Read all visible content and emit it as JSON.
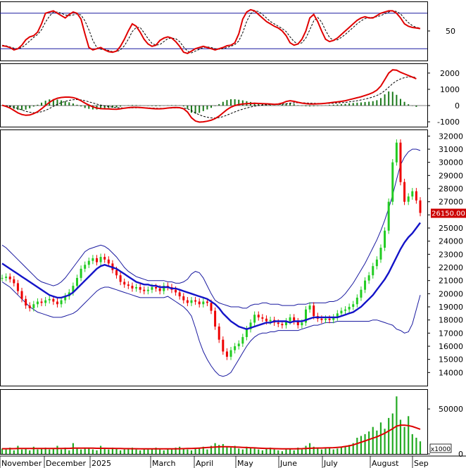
{
  "chart_data": {
    "type": "candlestick",
    "x_months": [
      "November",
      "December",
      "2025",
      "March",
      "April",
      "May",
      "June",
      "July",
      "August",
      "Sep"
    ],
    "price": {
      "ylim": [
        13000,
        32500
      ],
      "ticks": [
        "32000",
        "31000",
        "30000",
        "29000",
        "28000",
        "27000",
        "26000",
        "25000",
        "24000",
        "23000",
        "22000",
        "21000",
        "20000",
        "19000",
        "18000",
        "17000",
        "16000",
        "15000",
        "14000"
      ],
      "last_price_label": "26150.00",
      "last_price": 26150,
      "series_ma": "blue moving average",
      "series_bands": "bollinger bands",
      "closes": [
        21200,
        21300,
        21100,
        20800,
        20200,
        19600,
        19100,
        18900,
        19200,
        19400,
        19300,
        19500,
        19600,
        19400,
        19200,
        19500,
        19800,
        20100,
        20600,
        21200,
        21900,
        22200,
        22500,
        22700,
        22400,
        22800,
        22600,
        22300,
        21800,
        21400,
        20900,
        20700,
        20600,
        20400,
        20500,
        20300,
        20200,
        20300,
        20500,
        20400,
        20200,
        20600,
        20500,
        20300,
        20100,
        19800,
        19500,
        19300,
        19500,
        19400,
        19200,
        19400,
        19300,
        18700,
        17500,
        16500,
        15600,
        15200,
        15700,
        16000,
        16200,
        16700,
        17300,
        17800,
        18400,
        18200,
        18100,
        17900,
        18000,
        17800,
        17700,
        17600,
        17900,
        18200,
        17900,
        17600,
        17800,
        18800,
        19100,
        18300,
        18100,
        18000,
        18100,
        18000,
        18200,
        18500,
        18700,
        18800,
        19000,
        19200,
        19700,
        20300,
        21000,
        21400,
        22100,
        22600,
        23500,
        24800,
        27000,
        30000,
        31500,
        28500,
        27000,
        27400,
        27800,
        27100,
        26150
      ],
      "ma": [
        22300,
        22100,
        21900,
        21700,
        21500,
        21300,
        21100,
        20900,
        20700,
        20500,
        20300,
        20100,
        19900,
        19800,
        19700,
        19700,
        19800,
        19900,
        20100,
        20400,
        20700,
        21000,
        21300,
        21600,
        21900,
        22100,
        22200,
        22100,
        22000,
        21900,
        21700,
        21500,
        21300,
        21100,
        20900,
        20800,
        20700,
        20700,
        20600,
        20600,
        20500,
        20500,
        20500,
        20400,
        20400,
        20300,
        20200,
        20100,
        20000,
        19900,
        19800,
        19700,
        19600,
        19400,
        19200,
        18900,
        18500,
        18200,
        17900,
        17700,
        17500,
        17400,
        17300,
        17400,
        17500,
        17600,
        17700,
        17800,
        17800,
        17900,
        17900,
        17900,
        17900,
        17800,
        17900,
        17900,
        17900,
        18000,
        18100,
        18200,
        18200,
        18200,
        18200,
        18200,
        18200,
        18200,
        18300,
        18400,
        18500,
        18600,
        18800,
        19000,
        19300,
        19600,
        19900,
        20300,
        20700,
        21100,
        21600,
        22200,
        22800,
        23400,
        23900,
        24300,
        24600,
        25000,
        25400
      ],
      "bb_upper": [
        23700,
        23500,
        23200,
        22900,
        22600,
        22300,
        22000,
        21700,
        21400,
        21100,
        20900,
        20800,
        20700,
        20600,
        20700,
        20900,
        21200,
        21600,
        22000,
        22400,
        22800,
        23200,
        23400,
        23500,
        23600,
        23700,
        23600,
        23400,
        23100,
        22800,
        22400,
        22000,
        21700,
        21500,
        21300,
        21200,
        21100,
        21000,
        21000,
        21000,
        21000,
        21000,
        20900,
        20900,
        20800,
        20800,
        20900,
        21100,
        21500,
        21700,
        21600,
        21200,
        20600,
        20000,
        19500,
        19300,
        19200,
        19100,
        19000,
        19000,
        19000,
        18900,
        18900,
        19100,
        19200,
        19200,
        19300,
        19300,
        19200,
        19200,
        19200,
        19100,
        19100,
        19100,
        19100,
        19200,
        19200,
        19200,
        19300,
        19300,
        19300,
        19300,
        19300,
        19400,
        19400,
        19500,
        19700,
        20000,
        20400,
        20800,
        21300,
        21800,
        22300,
        22900,
        23500,
        24100,
        24800,
        25600,
        26500,
        27500,
        28700,
        29800,
        30400,
        30800,
        31000,
        31000,
        30900
      ],
      "bb_lower": [
        20900,
        20700,
        20500,
        20200,
        19900,
        19600,
        19300,
        19000,
        18800,
        18600,
        18500,
        18400,
        18300,
        18200,
        18200,
        18200,
        18300,
        18400,
        18500,
        18700,
        19000,
        19300,
        19600,
        19900,
        20200,
        20400,
        20500,
        20500,
        20400,
        20300,
        20200,
        20100,
        20000,
        19900,
        19800,
        19700,
        19700,
        19700,
        19700,
        19700,
        19700,
        19700,
        19800,
        19600,
        19400,
        19200,
        19000,
        18700,
        18300,
        17400,
        16400,
        15600,
        15000,
        14500,
        14100,
        13800,
        13700,
        13800,
        14000,
        14500,
        15000,
        15500,
        16000,
        16400,
        16700,
        16900,
        17000,
        17000,
        17100,
        17100,
        17200,
        17200,
        17200,
        17200,
        17200,
        17200,
        17300,
        17400,
        17500,
        17600,
        17600,
        17700,
        17800,
        17800,
        17800,
        17900,
        17900,
        17900,
        17900,
        17900,
        17900,
        17900,
        17900,
        17900,
        18000,
        18000,
        17900,
        17800,
        17700,
        17600,
        17300,
        17200,
        17000,
        17100,
        17700,
        18800,
        19900
      ]
    },
    "stochastic": {
      "ticks": [
        "50"
      ],
      "ref_lines": [
        80,
        20
      ],
      "k": [
        25,
        24,
        22,
        18,
        20,
        26,
        35,
        40,
        42,
        48,
        62,
        80,
        82,
        84,
        80,
        76,
        72,
        78,
        82,
        80,
        70,
        45,
        22,
        18,
        20,
        22,
        18,
        15,
        14,
        16,
        24,
        36,
        50,
        62,
        58,
        48,
        36,
        28,
        24,
        26,
        34,
        38,
        40,
        38,
        32,
        24,
        14,
        12,
        16,
        20,
        22,
        24,
        22,
        20,
        18,
        20,
        22,
        25,
        26,
        30,
        45,
        70,
        82,
        86,
        84,
        78,
        72,
        66,
        62,
        58,
        55,
        50,
        42,
        30,
        26,
        28,
        36,
        50,
        72,
        78,
        66,
        50,
        36,
        32,
        34,
        38,
        44,
        50,
        56,
        62,
        68,
        72,
        74,
        72,
        72,
        76,
        80,
        82,
        84,
        84,
        80,
        72,
        62,
        58,
        56,
        55,
        54
      ],
      "d": [
        26,
        25,
        23,
        21,
        20,
        22,
        27,
        33,
        39,
        44,
        52,
        65,
        75,
        82,
        82,
        80,
        77,
        76,
        77,
        79,
        77,
        67,
        52,
        34,
        22,
        19,
        19,
        17,
        15,
        15,
        18,
        25,
        36,
        49,
        56,
        56,
        47,
        37,
        29,
        26,
        27,
        32,
        37,
        38,
        37,
        32,
        23,
        16,
        13,
        16,
        19,
        22,
        23,
        22,
        20,
        19,
        20,
        22,
        24,
        27,
        33,
        47,
        66,
        79,
        84,
        83,
        78,
        72,
        66,
        62,
        58,
        54,
        49,
        40,
        32,
        28,
        30,
        38,
        52,
        67,
        73,
        65,
        51,
        39,
        34,
        35,
        39,
        44,
        50,
        56,
        62,
        67,
        71,
        73,
        73,
        74,
        76,
        79,
        82,
        84,
        83,
        79,
        71,
        64,
        59,
        56,
        55
      ]
    },
    "macd": {
      "ylim": [
        -1300,
        2600
      ],
      "ticks": [
        "2000",
        "1000",
        "0",
        "-1000"
      ],
      "macd": [
        20,
        -50,
        -150,
        -300,
        -450,
        -550,
        -600,
        -580,
        -500,
        -380,
        -200,
        0,
        200,
        350,
        450,
        500,
        520,
        520,
        490,
        420,
        300,
        150,
        30,
        -80,
        -150,
        -190,
        -200,
        -210,
        -220,
        -230,
        -200,
        -160,
        -130,
        -110,
        -110,
        -120,
        -140,
        -160,
        -180,
        -200,
        -200,
        -180,
        -150,
        -130,
        -120,
        -130,
        -200,
        -400,
        -750,
        -950,
        -1020,
        -1000,
        -960,
        -900,
        -800,
        -650,
        -450,
        -250,
        -100,
        0,
        60,
        100,
        120,
        130,
        140,
        130,
        120,
        110,
        100,
        80,
        90,
        150,
        250,
        300,
        260,
        200,
        150,
        120,
        100,
        100,
        110,
        120,
        140,
        170,
        200,
        230,
        260,
        300,
        360,
        420,
        480,
        540,
        620,
        700,
        800,
        950,
        1200,
        1600,
        2000,
        2200,
        2180,
        2050,
        1950,
        1850,
        1750,
        1650
      ],
      "signal": [
        0,
        -10,
        -40,
        -100,
        -180,
        -270,
        -350,
        -410,
        -440,
        -430,
        -380,
        -300,
        -180,
        -50,
        80,
        180,
        260,
        320,
        360,
        370,
        350,
        300,
        230,
        160,
        90,
        30,
        -20,
        -60,
        -90,
        -120,
        -140,
        -150,
        -150,
        -145,
        -140,
        -135,
        -135,
        -140,
        -150,
        -160,
        -170,
        -170,
        -165,
        -155,
        -145,
        -140,
        -150,
        -200,
        -310,
        -450,
        -570,
        -660,
        -720,
        -760,
        -770,
        -740,
        -680,
        -590,
        -490,
        -390,
        -300,
        -220,
        -150,
        -90,
        -40,
        0,
        30,
        50,
        60,
        60,
        65,
        80,
        110,
        150,
        170,
        175,
        170,
        160,
        150,
        140,
        135,
        130,
        130,
        135,
        145,
        160,
        175,
        195,
        225,
        260,
        300,
        345,
        400,
        460,
        530,
        620,
        740,
        910,
        1130,
        1350,
        1520,
        1640,
        1720,
        1770,
        1770,
        1730
      ]
    },
    "volume": {
      "unit_label": "x1000",
      "ticks": [
        "50000",
        "0"
      ],
      "ylim": [
        0,
        72000
      ],
      "values": [
        6000,
        5000,
        7000,
        4000,
        9000,
        5000,
        6000,
        4000,
        8000,
        5000,
        6000,
        7000,
        5000,
        6000,
        9000,
        5000,
        7000,
        4000,
        12000,
        6000,
        5000,
        7000,
        6000,
        5000,
        4000,
        9000,
        6000,
        5000,
        7000,
        6000,
        4000,
        5000,
        6000,
        7000,
        5000,
        4000,
        6000,
        5000,
        6000,
        7000,
        5000,
        4000,
        6000,
        5000,
        7000,
        8000,
        6000,
        5000,
        4000,
        7000,
        6000,
        8000,
        5000,
        9000,
        12000,
        10000,
        11000,
        8000,
        7000,
        9000,
        6000,
        5000,
        8000,
        7000,
        6000,
        5000,
        4000,
        6000,
        7000,
        5000,
        4000,
        3000,
        5000,
        6000,
        4000,
        7000,
        5000,
        9000,
        12000,
        8000,
        6000,
        5000,
        6000,
        7000,
        5000,
        6000,
        8000,
        9000,
        10000,
        12000,
        18000,
        20000,
        22000,
        25000,
        30000,
        26000,
        35000,
        28000,
        40000,
        45000,
        64000,
        38000,
        30000,
        42000,
        22000,
        18000,
        14000
      ],
      "ma": [
        5800,
        5800,
        5900,
        5900,
        6000,
        6000,
        6000,
        6000,
        6000,
        6000,
        6000,
        6000,
        6000,
        6000,
        6100,
        6100,
        6200,
        6200,
        6400,
        6500,
        6500,
        6500,
        6500,
        6400,
        6300,
        6300,
        6300,
        6200,
        6200,
        6100,
        6000,
        5900,
        5900,
        5800,
        5800,
        5700,
        5700,
        5700,
        5700,
        5700,
        5600,
        5600,
        5600,
        5600,
        5700,
        5800,
        5900,
        6000,
        6100,
        6300,
        6500,
        6800,
        7100,
        7400,
        7700,
        7900,
        8000,
        8000,
        7900,
        7700,
        7500,
        7300,
        7100,
        6900,
        6700,
        6500,
        6300,
        6100,
        6000,
        5900,
        5800,
        5700,
        5700,
        5700,
        5700,
        5800,
        5900,
        6100,
        6300,
        6500,
        6600,
        6600,
        6700,
        6800,
        7000,
        7300,
        7700,
        8300,
        9000,
        10000,
        11500,
        13000,
        14500,
        16000,
        17500,
        19000,
        21000,
        23000,
        25500,
        28000,
        31000,
        32000,
        32000,
        31500,
        30500,
        29000,
        27500
      ]
    }
  }
}
